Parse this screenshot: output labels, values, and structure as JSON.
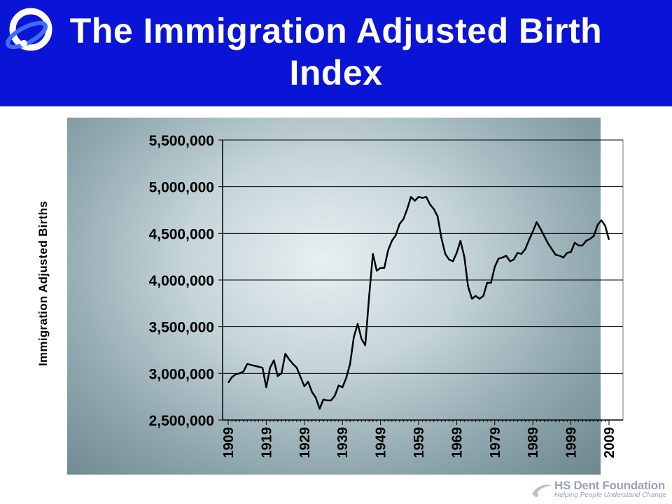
{
  "slide": {
    "title_line1": "The Immigration Adjusted Birth",
    "title_line2": "Index",
    "banner_color": "#0a14d6",
    "logo_icon": "orbit-logo-icon"
  },
  "footer": {
    "org_name": "HS Dent Foundation",
    "tagline": "Helping People Understand Change",
    "logo_icon": "swoosh-logo-icon"
  },
  "chart_data": {
    "type": "line",
    "title": "",
    "xlabel": "",
    "ylabel": "Immigration Adjusted Births",
    "xlim": [
      1909,
      2009
    ],
    "ylim": [
      2500000,
      5500000
    ],
    "yticks": [
      2500000,
      3000000,
      3500000,
      4000000,
      4500000,
      5000000,
      5500000
    ],
    "ytick_labels": [
      "2,500,000",
      "3,000,000",
      "3,500,000",
      "4,000,000",
      "4,500,000",
      "5,000,000",
      "5,500,000"
    ],
    "xticks": [
      1909,
      1919,
      1929,
      1939,
      1949,
      1959,
      1969,
      1979,
      1989,
      1999,
      2009
    ],
    "xtick_labels": [
      "1909",
      "1919",
      "1929",
      "1939",
      "1949",
      "1959",
      "1969",
      "1979",
      "1989",
      "1999",
      "2009"
    ],
    "grid": "horizontal",
    "line_color": "#000000",
    "series": [
      {
        "name": "",
        "x": [
          1909,
          1910,
          1911,
          1912,
          1913,
          1914,
          1915,
          1916,
          1917,
          1918,
          1919,
          1920,
          1921,
          1922,
          1923,
          1924,
          1925,
          1926,
          1927,
          1928,
          1929,
          1930,
          1931,
          1932,
          1933,
          1934,
          1935,
          1936,
          1937,
          1938,
          1939,
          1940,
          1941,
          1942,
          1943,
          1944,
          1945,
          1946,
          1947,
          1948,
          1949,
          1950,
          1951,
          1952,
          1953,
          1954,
          1955,
          1956,
          1957,
          1958,
          1959,
          1960,
          1961,
          1962,
          1963,
          1964,
          1965,
          1966,
          1967,
          1968,
          1969,
          1970,
          1971,
          1972,
          1973,
          1974,
          1975,
          1976,
          1977,
          1978,
          1979,
          1980,
          1981,
          1982,
          1983,
          1984,
          1985,
          1986,
          1987,
          1988,
          1989,
          1990,
          1991,
          1992,
          1993,
          1994,
          1995,
          1996,
          1997,
          1998,
          1999,
          2000,
          2001,
          2002,
          2003,
          2004,
          2005,
          2006,
          2007,
          2008,
          2009
        ],
        "values": [
          2900000,
          2960000,
          2990000,
          3000000,
          3020000,
          3100000,
          3090000,
          3080000,
          3070000,
          3060000,
          2850000,
          3060000,
          3140000,
          2970000,
          3000000,
          3210000,
          3150000,
          3100000,
          3060000,
          2960000,
          2860000,
          2910000,
          2800000,
          2740000,
          2620000,
          2720000,
          2710000,
          2710000,
          2760000,
          2870000,
          2850000,
          2950000,
          3100000,
          3390000,
          3530000,
          3370000,
          3300000,
          3820000,
          4280000,
          4100000,
          4130000,
          4130000,
          4320000,
          4420000,
          4480000,
          4600000,
          4650000,
          4760000,
          4890000,
          4850000,
          4890000,
          4880000,
          4890000,
          4810000,
          4760000,
          4680000,
          4450000,
          4280000,
          4220000,
          4200000,
          4290000,
          4420000,
          4250000,
          3930000,
          3800000,
          3830000,
          3800000,
          3830000,
          3970000,
          3970000,
          4140000,
          4230000,
          4240000,
          4260000,
          4200000,
          4220000,
          4290000,
          4280000,
          4330000,
          4430000,
          4520000,
          4620000,
          4550000,
          4470000,
          4390000,
          4330000,
          4270000,
          4260000,
          4240000,
          4290000,
          4300000,
          4400000,
          4370000,
          4370000,
          4420000,
          4440000,
          4470000,
          4590000,
          4640000,
          4580000,
          4430000
        ]
      }
    ]
  }
}
